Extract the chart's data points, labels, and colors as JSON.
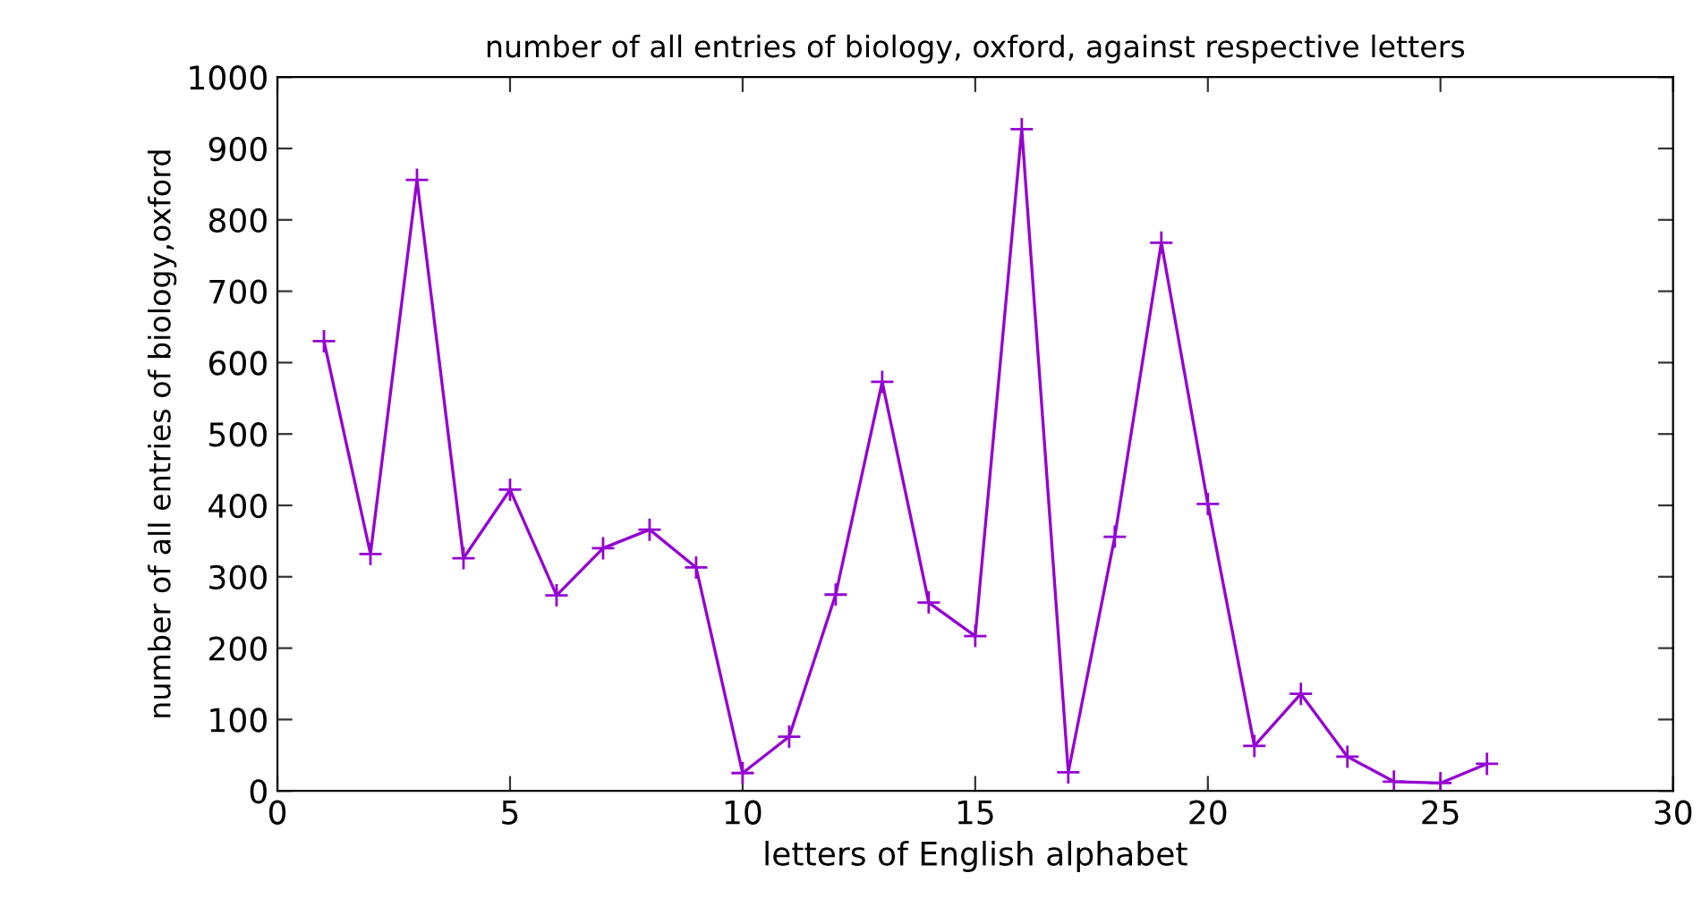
{
  "chart_data": {
    "type": "line",
    "title": "number of all entries of biology, oxford, against respective letters",
    "xlabel": "letters of English alphabet",
    "ylabel": "number of all entries of biology,oxford",
    "x": [
      1,
      2,
      3,
      4,
      5,
      6,
      7,
      8,
      9,
      10,
      11,
      12,
      13,
      14,
      15,
      16,
      17,
      18,
      19,
      20,
      21,
      22,
      23,
      24,
      25,
      26
    ],
    "series": [
      {
        "color": "#9400d3",
        "values": [
          630,
          332,
          856,
          326,
          422,
          274,
          340,
          366,
          313,
          25,
          76,
          275,
          573,
          264,
          217,
          927,
          26,
          356,
          768,
          402,
          63,
          136,
          48,
          13,
          11,
          38
        ]
      }
    ],
    "xlim": [
      0,
      30
    ],
    "xticks": [
      0,
      5,
      10,
      15,
      20,
      25,
      30
    ],
    "ylim": [
      0,
      1000
    ],
    "yticks": [
      0,
      100,
      200,
      300,
      400,
      500,
      600,
      700,
      800,
      900,
      1000
    ],
    "grid": false,
    "marker": "cross",
    "line_style": "solid"
  }
}
